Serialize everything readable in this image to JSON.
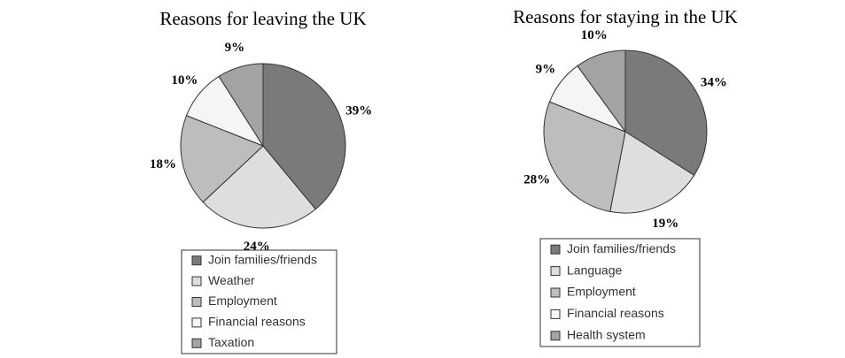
{
  "chart_data": [
    {
      "type": "pie",
      "title": "Reasons for leaving the UK",
      "categories": [
        "Join families/friends",
        "Weather",
        "Employment",
        "Financial reasons",
        "Taxation"
      ],
      "values": [
        39,
        24,
        18,
        10,
        9
      ],
      "value_labels": [
        "39%",
        "24%",
        "18%",
        "10%",
        "9%"
      ],
      "colors": [
        "#7a7a7a",
        "#dedede",
        "#bdbdbd",
        "#f5f5f5",
        "#a3a3a3"
      ]
    },
    {
      "type": "pie",
      "title": "Reasons for staying in the UK",
      "categories": [
        "Join families/friends",
        "Language",
        "Employment",
        "Financial reasons",
        "Health system"
      ],
      "values": [
        34,
        19,
        28,
        9,
        10
      ],
      "value_labels": [
        "34%",
        "19%",
        "28%",
        "9%",
        "10%"
      ],
      "colors": [
        "#7a7a7a",
        "#dedede",
        "#bdbdbd",
        "#f5f5f5",
        "#a3a3a3"
      ]
    }
  ]
}
